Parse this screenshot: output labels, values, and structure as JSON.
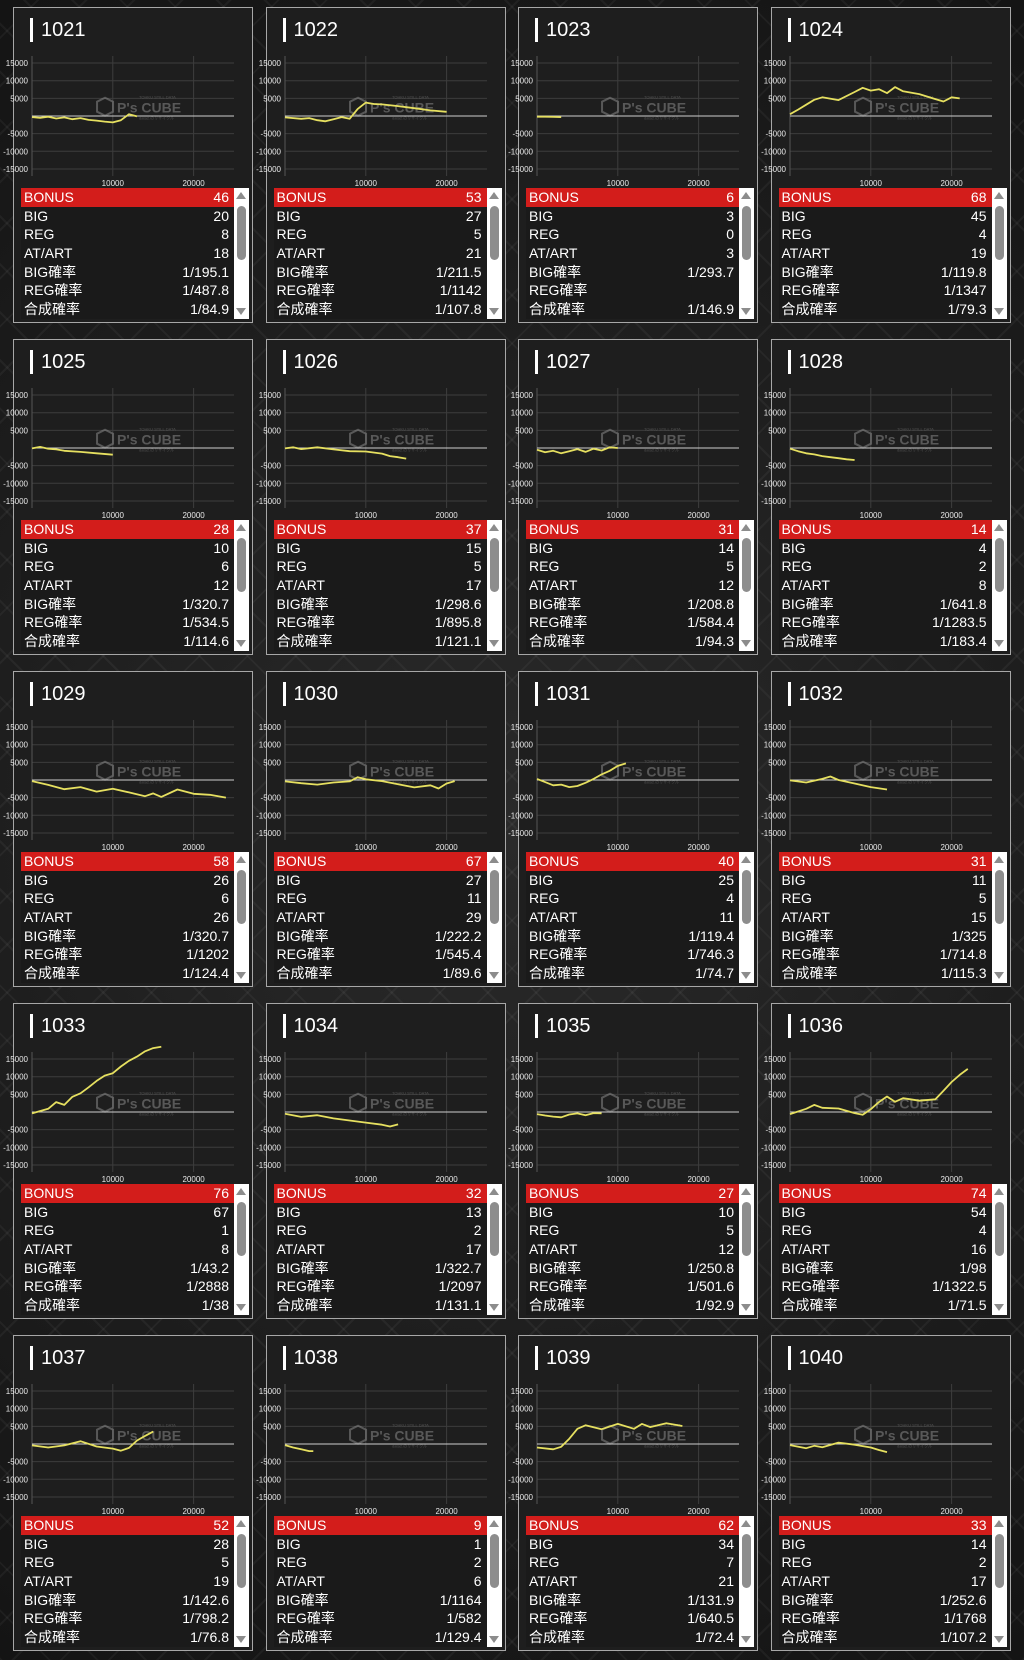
{
  "stat_labels": {
    "bonus": "BONUS",
    "big": "BIG",
    "reg": "REG",
    "at": "AT/ART",
    "big_rate": "BIG確率",
    "reg_rate": "REG確率",
    "combined_rate": "合成確率"
  },
  "watermark": {
    "brand": "P's CUBE",
    "small_top": "TOHKU STILL DATA",
    "small_bottom": "data2.のリサイクル"
  },
  "colors": {
    "bonus_bar": "#d31d1b",
    "line": "#e6e060",
    "card_border": "#a7a7a7"
  },
  "chart_axes": {
    "y_ticks": [
      "15000",
      "10000",
      "5000",
      "-5000",
      "-10000",
      "-15000"
    ],
    "x_ticks": [
      "10000",
      "20000"
    ]
  },
  "machines": [
    {
      "id": "1021",
      "bonus": "46",
      "big": "20",
      "reg": "8",
      "at": "18",
      "big_rate": "1/195.1",
      "reg_rate": "1/487.8",
      "combined_rate": "1/84.9",
      "chart_data": {
        "type": "line",
        "xlim": [
          0,
          25000
        ],
        "ylim": [
          -17000,
          17000
        ],
        "x": [
          0,
          1000,
          2000,
          3000,
          4000,
          5000,
          6000,
          7000,
          8000,
          9000,
          10000,
          11000,
          12000,
          13000
        ],
        "y": [
          -300,
          -500,
          -200,
          -700,
          -400,
          -900,
          -600,
          -1100,
          -1300,
          -1600,
          -1800,
          -1200,
          500,
          -100
        ]
      }
    },
    {
      "id": "1022",
      "bonus": "53",
      "big": "27",
      "reg": "5",
      "at": "21",
      "big_rate": "1/211.5",
      "reg_rate": "1/1142",
      "combined_rate": "1/107.8",
      "chart_data": {
        "type": "line",
        "xlim": [
          0,
          25000
        ],
        "ylim": [
          -17000,
          17000
        ],
        "x": [
          0,
          2000,
          3000,
          4000,
          5000,
          6000,
          7000,
          8000,
          9000,
          10000,
          11000,
          12000,
          14000,
          16000,
          18000,
          20000
        ],
        "y": [
          -400,
          -800,
          -600,
          -1200,
          -1500,
          -900,
          -300,
          -800,
          2000,
          3800,
          3400,
          3300,
          2800,
          2200,
          1600,
          1200
        ]
      }
    },
    {
      "id": "1023",
      "bonus": "6",
      "big": "3",
      "reg": "0",
      "at": "3",
      "big_rate": "1/293.7",
      "reg_rate": "",
      "combined_rate": "1/146.9",
      "chart_data": {
        "type": "line",
        "xlim": [
          0,
          25000
        ],
        "ylim": [
          -17000,
          17000
        ],
        "x": [
          0,
          1000,
          2000,
          3000
        ],
        "y": [
          -200,
          -200,
          -250,
          -300
        ]
      }
    },
    {
      "id": "1024",
      "bonus": "68",
      "big": "45",
      "reg": "4",
      "at": "19",
      "big_rate": "1/119.8",
      "reg_rate": "1/1347",
      "combined_rate": "1/79.3",
      "chart_data": {
        "type": "line",
        "xlim": [
          0,
          25000
        ],
        "ylim": [
          -17000,
          17000
        ],
        "x": [
          0,
          1000,
          2000,
          3000,
          4000,
          6000,
          8000,
          9000,
          10000,
          11000,
          12000,
          13000,
          14000,
          16000,
          18000,
          19000,
          20000,
          21000
        ],
        "y": [
          500,
          1800,
          3200,
          4600,
          5300,
          4500,
          6800,
          8000,
          7200,
          7600,
          6500,
          8200,
          7000,
          6200,
          4800,
          4100,
          5300,
          5000
        ]
      }
    },
    {
      "id": "1025",
      "bonus": "28",
      "big": "10",
      "reg": "6",
      "at": "12",
      "big_rate": "1/320.7",
      "reg_rate": "1/534.5",
      "combined_rate": "1/114.6",
      "chart_data": {
        "type": "line",
        "xlim": [
          0,
          25000
        ],
        "ylim": [
          -17000,
          17000
        ],
        "x": [
          0,
          1000,
          2000,
          3000,
          4000,
          6000,
          8000,
          10000
        ],
        "y": [
          -100,
          300,
          -200,
          -400,
          -800,
          -1100,
          -1500,
          -1900
        ]
      }
    },
    {
      "id": "1026",
      "bonus": "37",
      "big": "15",
      "reg": "5",
      "at": "17",
      "big_rate": "1/298.6",
      "reg_rate": "1/895.8",
      "combined_rate": "1/121.1",
      "chart_data": {
        "type": "line",
        "xlim": [
          0,
          25000
        ],
        "ylim": [
          -17000,
          17000
        ],
        "x": [
          0,
          1000,
          2000,
          4000,
          6000,
          8000,
          10000,
          12000,
          13000,
          14000,
          15000
        ],
        "y": [
          -100,
          200,
          -300,
          200,
          -400,
          -900,
          -1000,
          -1600,
          -2300,
          -2600,
          -3000
        ]
      }
    },
    {
      "id": "1027",
      "bonus": "31",
      "big": "14",
      "reg": "5",
      "at": "12",
      "big_rate": "1/208.8",
      "reg_rate": "1/584.4",
      "combined_rate": "1/94.3",
      "chart_data": {
        "type": "line",
        "xlim": [
          0,
          25000
        ],
        "ylim": [
          -17000,
          17000
        ],
        "x": [
          0,
          1000,
          2000,
          3000,
          4000,
          5000,
          6000,
          7000,
          8000,
          9000,
          10000
        ],
        "y": [
          -500,
          -1200,
          -800,
          -1500,
          -900,
          -300,
          -1100,
          -200,
          -700,
          200,
          0
        ]
      }
    },
    {
      "id": "1028",
      "bonus": "14",
      "big": "4",
      "reg": "2",
      "at": "8",
      "big_rate": "1/641.8",
      "reg_rate": "1/1283.5",
      "combined_rate": "1/183.4",
      "chart_data": {
        "type": "line",
        "xlim": [
          0,
          25000
        ],
        "ylim": [
          -17000,
          17000
        ],
        "x": [
          0,
          1000,
          2000,
          3000,
          4000,
          5000,
          6000,
          7000,
          8000
        ],
        "y": [
          -200,
          -900,
          -1500,
          -1800,
          -2300,
          -2600,
          -2900,
          -3200,
          -3400
        ]
      }
    },
    {
      "id": "1029",
      "bonus": "58",
      "big": "26",
      "reg": "6",
      "at": "26",
      "big_rate": "1/320.7",
      "reg_rate": "1/1202",
      "combined_rate": "1/124.4",
      "chart_data": {
        "type": "line",
        "xlim": [
          0,
          25000
        ],
        "ylim": [
          -17000,
          17000
        ],
        "x": [
          0,
          2000,
          4000,
          6000,
          8000,
          10000,
          12000,
          14000,
          15000,
          16000,
          18000,
          20000,
          22000,
          24000
        ],
        "y": [
          -300,
          -1400,
          -2600,
          -2000,
          -3300,
          -2500,
          -3500,
          -4600,
          -3800,
          -4800,
          -2700,
          -3900,
          -4200,
          -5000
        ]
      }
    },
    {
      "id": "1030",
      "bonus": "67",
      "big": "27",
      "reg": "11",
      "at": "29",
      "big_rate": "1/222.2",
      "reg_rate": "1/545.4",
      "combined_rate": "1/89.6",
      "chart_data": {
        "type": "line",
        "xlim": [
          0,
          25000
        ],
        "ylim": [
          -17000,
          17000
        ],
        "x": [
          0,
          2000,
          4000,
          6000,
          8000,
          9000,
          10000,
          12000,
          14000,
          16000,
          18000,
          19000,
          20000,
          21000
        ],
        "y": [
          -400,
          -900,
          -1300,
          -700,
          -400,
          800,
          200,
          -300,
          -1200,
          -2100,
          -1500,
          -2400,
          -1000,
          -300
        ]
      }
    },
    {
      "id": "1031",
      "bonus": "40",
      "big": "25",
      "reg": "4",
      "at": "11",
      "big_rate": "1/119.4",
      "reg_rate": "1/746.3",
      "combined_rate": "1/74.7",
      "chart_data": {
        "type": "line",
        "xlim": [
          0,
          25000
        ],
        "ylim": [
          -17000,
          17000
        ],
        "x": [
          0,
          1000,
          2000,
          3000,
          4000,
          5000,
          6000,
          7000,
          8000,
          9000,
          10000,
          11000
        ],
        "y": [
          300,
          -600,
          -1500,
          -1300,
          -2000,
          -1700,
          -800,
          300,
          1600,
          2600,
          4000,
          4700
        ]
      }
    },
    {
      "id": "1032",
      "bonus": "31",
      "big": "11",
      "reg": "5",
      "at": "15",
      "big_rate": "1/325",
      "reg_rate": "1/714.8",
      "combined_rate": "1/115.3",
      "chart_data": {
        "type": "line",
        "xlim": [
          0,
          25000
        ],
        "ylim": [
          -17000,
          17000
        ],
        "x": [
          0,
          2000,
          4000,
          5000,
          6000,
          8000,
          10000,
          12000
        ],
        "y": [
          -100,
          -700,
          300,
          1000,
          0,
          -1000,
          -2000,
          -2700
        ]
      }
    },
    {
      "id": "1033",
      "bonus": "76",
      "big": "67",
      "reg": "1",
      "at": "8",
      "big_rate": "1/43.2",
      "reg_rate": "1/2888",
      "combined_rate": "1/38",
      "chart_data": {
        "type": "line",
        "xlim": [
          0,
          25000
        ],
        "ylim": [
          -17000,
          17000
        ],
        "x": [
          0,
          2000,
          3000,
          4000,
          5000,
          6000,
          7000,
          8000,
          9000,
          10000,
          11000,
          12000,
          13000,
          14000,
          15000,
          16000
        ],
        "y": [
          -400,
          900,
          2800,
          2000,
          4300,
          5300,
          7000,
          8800,
          10300,
          11000,
          12900,
          14500,
          15700,
          17200,
          18100,
          18500
        ]
      }
    },
    {
      "id": "1034",
      "bonus": "32",
      "big": "13",
      "reg": "2",
      "at": "17",
      "big_rate": "1/322.7",
      "reg_rate": "1/2097",
      "combined_rate": "1/131.1",
      "chart_data": {
        "type": "line",
        "xlim": [
          0,
          25000
        ],
        "ylim": [
          -17000,
          17000
        ],
        "x": [
          0,
          2000,
          4000,
          6000,
          8000,
          10000,
          12000,
          13000,
          14000
        ],
        "y": [
          -500,
          -1400,
          -900,
          -1800,
          -2400,
          -3000,
          -3600,
          -4100,
          -3500
        ]
      }
    },
    {
      "id": "1035",
      "bonus": "27",
      "big": "10",
      "reg": "5",
      "at": "12",
      "big_rate": "1/250.8",
      "reg_rate": "1/501.6",
      "combined_rate": "1/92.9",
      "chart_data": {
        "type": "line",
        "xlim": [
          0,
          25000
        ],
        "ylim": [
          -17000,
          17000
        ],
        "x": [
          0,
          1000,
          2000,
          3000,
          4000,
          5000,
          6000,
          7000,
          8000
        ],
        "y": [
          -600,
          -1000,
          -1300,
          -1500,
          -700,
          -400,
          -900,
          -300,
          -400
        ]
      }
    },
    {
      "id": "1036",
      "bonus": "74",
      "big": "54",
      "reg": "4",
      "at": "16",
      "big_rate": "1/98",
      "reg_rate": "1/1322.5",
      "combined_rate": "1/71.5",
      "chart_data": {
        "type": "line",
        "xlim": [
          0,
          25000
        ],
        "ylim": [
          -17000,
          17000
        ],
        "x": [
          0,
          2000,
          3000,
          4000,
          6000,
          8000,
          9000,
          10000,
          11000,
          12000,
          13000,
          14000,
          16000,
          18000,
          19000,
          20000,
          21000,
          22000
        ],
        "y": [
          -600,
          900,
          2000,
          1200,
          1000,
          -300,
          -800,
          800,
          2800,
          4400,
          2900,
          3900,
          3200,
          3600,
          6000,
          8500,
          10500,
          12200
        ]
      }
    },
    {
      "id": "1037",
      "bonus": "52",
      "big": "28",
      "reg": "5",
      "at": "19",
      "big_rate": "1/142.6",
      "reg_rate": "1/798.2",
      "combined_rate": "1/76.8",
      "chart_data": {
        "type": "line",
        "xlim": [
          0,
          25000
        ],
        "ylim": [
          -17000,
          17000
        ],
        "x": [
          0,
          2000,
          4000,
          6000,
          8000,
          10000,
          11000,
          12000,
          13000,
          14000,
          15000
        ],
        "y": [
          -400,
          -1000,
          -400,
          800,
          -700,
          -1300,
          -1900,
          -1100,
          1000,
          2300,
          3500
        ]
      }
    },
    {
      "id": "1038",
      "bonus": "9",
      "big": "1",
      "reg": "2",
      "at": "6",
      "big_rate": "1/1164",
      "reg_rate": "1/582",
      "combined_rate": "1/129.4",
      "chart_data": {
        "type": "line",
        "xlim": [
          0,
          25000
        ],
        "ylim": [
          -17000,
          17000
        ],
        "x": [
          0,
          1000,
          2000,
          3000,
          3500
        ],
        "y": [
          -300,
          -1000,
          -1500,
          -2000,
          -2000
        ]
      }
    },
    {
      "id": "1039",
      "bonus": "62",
      "big": "34",
      "reg": "7",
      "at": "21",
      "big_rate": "1/131.9",
      "reg_rate": "1/640.5",
      "combined_rate": "1/72.4",
      "chart_data": {
        "type": "line",
        "xlim": [
          0,
          25000
        ],
        "ylim": [
          -17000,
          17000
        ],
        "x": [
          0,
          2000,
          3000,
          4000,
          5000,
          6000,
          8000,
          10000,
          12000,
          13000,
          14000,
          16000,
          18000
        ],
        "y": [
          -1000,
          -1500,
          -800,
          1500,
          4300,
          5300,
          4200,
          5700,
          4300,
          5700,
          4800,
          5900,
          5100
        ]
      }
    },
    {
      "id": "1040",
      "bonus": "33",
      "big": "14",
      "reg": "2",
      "at": "17",
      "big_rate": "1/252.6",
      "reg_rate": "1/1768",
      "combined_rate": "1/107.2",
      "chart_data": {
        "type": "line",
        "xlim": [
          0,
          25000
        ],
        "ylim": [
          -17000,
          17000
        ],
        "x": [
          0,
          2000,
          3000,
          4000,
          6000,
          8000,
          10000,
          11000,
          12000
        ],
        "y": [
          -300,
          -1200,
          -500,
          -900,
          400,
          -200,
          -1000,
          -1700,
          -2300
        ]
      }
    }
  ]
}
